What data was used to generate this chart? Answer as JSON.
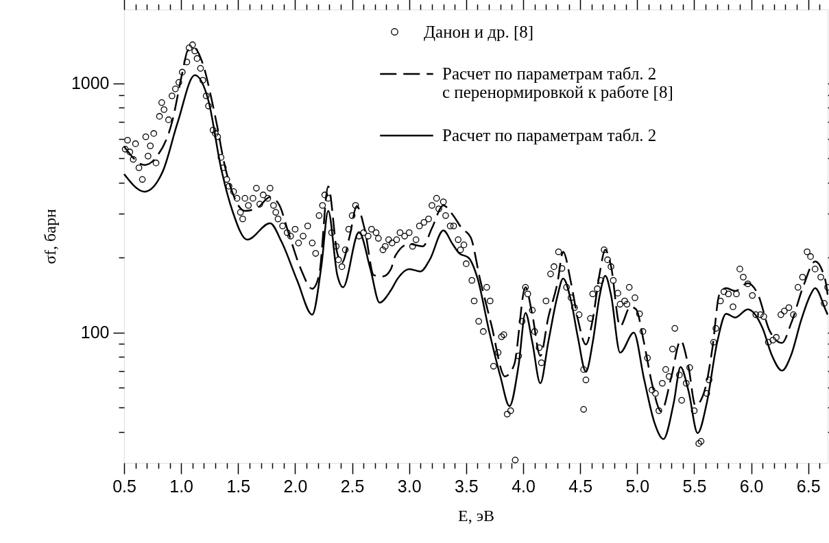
{
  "chart_data": {
    "type": "line",
    "xlabel": "E, эВ",
    "ylabel": "σf, барн",
    "log": "y",
    "grid": false,
    "legend": "top right",
    "xlim": [
      0.5,
      6.67
    ],
    "ylim": [
      30,
      1980
    ],
    "xticks": [
      0.5,
      {
        "value": 0.6,
        "label": null
      },
      {
        "value": 0.7,
        "label": null
      },
      {
        "value": 0.8,
        "label": null
      },
      {
        "value": 0.9,
        "label": null
      },
      {
        "value": 1,
        "label": "1.0"
      },
      {
        "value": 1.1,
        "label": null
      },
      {
        "value": 1.2,
        "label": null
      },
      {
        "value": 1.3,
        "label": null
      },
      {
        "value": 1.4,
        "label": null
      },
      1.5,
      {
        "value": 1.6,
        "label": null
      },
      {
        "value": 1.7,
        "label": null
      },
      {
        "value": 1.8,
        "label": null
      },
      {
        "value": 1.9,
        "label": null
      },
      {
        "value": 2,
        "label": "2.0"
      },
      {
        "value": 2.1,
        "label": null
      },
      {
        "value": 2.2,
        "label": null
      },
      {
        "value": 2.3,
        "label": null
      },
      {
        "value": 2.4,
        "label": null
      },
      2.5,
      {
        "value": 2.6,
        "label": null
      },
      {
        "value": 2.7,
        "label": null
      },
      {
        "value": 2.8,
        "label": null
      },
      {
        "value": 2.9,
        "label": null
      },
      {
        "value": 3,
        "label": "3.0"
      },
      {
        "value": 3.1,
        "label": null
      },
      {
        "value": 3.2,
        "label": null
      },
      {
        "value": 3.3,
        "label": null
      },
      {
        "value": 3.4,
        "label": null
      },
      3.5,
      {
        "value": 3.6,
        "label": null
      },
      {
        "value": 3.7,
        "label": null
      },
      {
        "value": 3.8,
        "label": null
      },
      {
        "value": 3.9,
        "label": null
      },
      {
        "value": 4,
        "label": "4.0"
      },
      {
        "value": 4.1,
        "label": null
      },
      {
        "value": 4.2,
        "label": null
      },
      {
        "value": 4.3,
        "label": null
      },
      {
        "value": 4.4,
        "label": null
      },
      4.5,
      {
        "value": 4.6,
        "label": null
      },
      {
        "value": 4.7,
        "label": null
      },
      {
        "value": 4.8,
        "label": null
      },
      {
        "value": 4.9,
        "label": null
      },
      {
        "value": 5,
        "label": "5.0"
      },
      {
        "value": 5.1,
        "label": null
      },
      {
        "value": 5.2,
        "label": null
      },
      {
        "value": 5.3,
        "label": null
      },
      {
        "value": 5.4,
        "label": null
      },
      5.5,
      {
        "value": 5.6,
        "label": null
      },
      {
        "value": 5.7,
        "label": null
      },
      {
        "value": 5.8,
        "label": null
      },
      {
        "value": 5.9,
        "label": null
      },
      {
        "value": 6,
        "label": "6.0"
      },
      {
        "value": 6.1,
        "label": null
      },
      {
        "value": 6.2,
        "label": null
      },
      {
        "value": 6.3,
        "label": null
      },
      {
        "value": 6.4,
        "label": null
      },
      6.5,
      {
        "value": 6.6,
        "label": null
      }
    ],
    "yticks": [
      {
        "value": 40,
        "label": null
      },
      {
        "value": 50,
        "label": null
      },
      {
        "value": 60,
        "label": null
      },
      {
        "value": 70,
        "label": null
      },
      {
        "value": 80,
        "label": null
      },
      {
        "value": 90,
        "label": null
      },
      100,
      {
        "value": 200,
        "label": null
      },
      {
        "value": 300,
        "label": null
      },
      {
        "value": 400,
        "label": null
      },
      {
        "value": 500,
        "label": null
      },
      {
        "value": 600,
        "label": null
      },
      {
        "value": 700,
        "label": null
      },
      {
        "value": 800,
        "label": null
      },
      {
        "value": 900,
        "label": null
      },
      1000
    ],
    "series": [
      {
        "name": "Данон и др. [8]",
        "type": "scatter",
        "marker": "circle",
        "color": "#000000",
        "x": [
          0.51,
          0.53,
          0.55,
          0.58,
          0.6,
          0.63,
          0.66,
          0.69,
          0.71,
          0.73,
          0.76,
          0.78,
          0.81,
          0.83,
          0.85,
          0.89,
          0.92,
          0.95,
          0.98,
          1.01,
          1.05,
          1.07,
          1.1,
          1.12,
          1.14,
          1.17,
          1.19,
          1.22,
          1.24,
          1.28,
          1.3,
          1.32,
          1.35,
          1.37,
          1.4,
          1.42,
          1.46,
          1.49,
          1.52,
          1.54,
          1.56,
          1.59,
          1.63,
          1.66,
          1.69,
          1.72,
          1.76,
          1.78,
          1.81,
          1.83,
          1.85,
          1.89,
          1.93,
          1.96,
          2.0,
          2.03,
          2.07,
          2.11,
          2.15,
          2.18,
          2.21,
          2.24,
          2.26,
          2.29,
          2.32,
          2.36,
          2.38,
          2.41,
          2.44,
          2.47,
          2.5,
          2.53,
          2.56,
          2.6,
          2.64,
          2.67,
          2.71,
          2.73,
          2.77,
          2.79,
          2.82,
          2.85,
          2.89,
          2.92,
          2.96,
          3.0,
          3.03,
          3.06,
          3.09,
          3.13,
          3.17,
          3.2,
          3.24,
          3.26,
          3.3,
          3.32,
          3.36,
          3.39,
          3.43,
          3.45,
          3.48,
          3.5,
          3.55,
          3.57,
          3.61,
          3.65,
          3.68,
          3.71,
          3.74,
          3.78,
          3.81,
          3.83,
          3.86,
          3.89,
          3.93,
          3.96,
          3.99,
          4.02,
          4.04,
          4.08,
          4.1,
          4.14,
          4.16,
          4.2,
          4.24,
          4.27,
          4.31,
          4.34,
          4.38,
          4.42,
          4.45,
          4.49,
          4.53,
          4.55,
          4.53,
          4.59,
          4.61,
          4.65,
          4.68,
          4.71,
          4.74,
          4.77,
          4.79,
          4.83,
          4.85,
          4.89,
          4.91,
          4.93,
          4.98,
          5.02,
          5.05,
          5.09,
          5.13,
          5.16,
          5.19,
          5.22,
          5.25,
          5.28,
          5.31,
          5.33,
          5.37,
          5.39,
          5.43,
          5.46,
          5.5,
          5.54,
          5.56,
          5.61,
          5.63,
          5.67,
          5.69,
          5.73,
          5.76,
          5.8,
          5.84,
          5.87,
          5.9,
          5.93,
          5.97,
          6.01,
          6.04,
          6.08,
          6.11,
          6.15,
          6.19,
          6.22,
          6.26,
          6.29,
          6.33,
          6.37,
          6.41,
          6.45,
          6.49,
          6.52,
          6.56,
          6.61,
          6.64,
          6.67
        ],
        "values": [
          545,
          592,
          531,
          496,
          573,
          459,
          412,
          611,
          511,
          562,
          630,
          480,
          738,
          838,
          786,
          715,
          892,
          951,
          1010,
          1110,
          1220,
          1390,
          1430,
          1350,
          1260,
          1150,
          1030,
          892,
          812,
          650,
          630,
          611,
          505,
          459,
          412,
          387,
          368,
          346,
          304,
          286,
          346,
          324,
          346,
          380,
          328,
          357,
          346,
          380,
          324,
          304,
          286,
          268,
          252,
          244,
          260,
          229,
          244,
          268,
          229,
          208,
          295,
          324,
          357,
          346,
          252,
          222,
          196,
          184,
          215,
          260,
          295,
          324,
          244,
          252,
          244,
          260,
          252,
          239,
          215,
          222,
          236,
          229,
          236,
          252,
          244,
          252,
          222,
          236,
          268,
          277,
          286,
          324,
          346,
          314,
          335,
          295,
          268,
          268,
          236,
          215,
          225,
          189,
          162,
          134,
          111,
          101,
          152,
          134,
          73.3,
          83.2,
          96.3,
          98.1,
          47.1,
          48.6,
          30.8,
          80.6,
          111,
          152,
          143,
          123,
          101,
          87,
          75.7,
          134,
          172,
          184,
          211,
          181,
          152,
          138,
          126,
          118,
          71.1,
          64.6,
          49.2,
          114,
          143,
          150,
          162,
          215,
          196,
          184,
          162,
          144,
          130,
          134,
          130,
          152,
          138,
          119,
          101,
          79.1,
          58.8,
          57,
          48.6,
          62.6,
          71.1,
          66.7,
          85.9,
          104,
          67.6,
          53.5,
          62.6,
          72.4,
          48.6,
          35.9,
          36.6,
          57,
          64.6,
          91.5,
          104,
          134,
          146,
          143,
          127,
          143,
          180,
          167,
          157,
          141,
          118,
          118,
          116,
          91.5,
          93.3,
          95.7,
          118,
          122,
          126,
          118,
          152,
          167,
          211,
          202,
          180,
          167,
          131,
          152
        ]
      },
      {
        "name": "Расчет по параметрам табл. 2\nс перенормировкой к работе [8]",
        "line_style": "dashed",
        "color": "#000000",
        "x": [
          0.5,
          0.68,
          0.78,
          0.92,
          1.01,
          1.06,
          1.12,
          1.19,
          1.27,
          1.32,
          1.37,
          1.45,
          1.56,
          1.67,
          1.78,
          1.86,
          1.94,
          2.05,
          2.15,
          2.21,
          2.29,
          2.37,
          2.41,
          2.48,
          2.54,
          2.61,
          2.69,
          2.77,
          2.84,
          2.88,
          3.0,
          3.12,
          3.2,
          3.3,
          3.38,
          3.46,
          3.54,
          3.62,
          3.72,
          3.84,
          3.92,
          4.02,
          4.08,
          4.15,
          4.22,
          4.3,
          4.35,
          4.42,
          4.48,
          4.55,
          4.61,
          4.67,
          4.72,
          4.77,
          4.85,
          4.94,
          4.99,
          5.06,
          5.13,
          5.21,
          5.3,
          5.38,
          5.45,
          5.51,
          5.59,
          5.66,
          5.72,
          5.78,
          5.86,
          5.97,
          6.06,
          6.16,
          6.27,
          6.35,
          6.46,
          6.56,
          6.65,
          6.67
        ],
        "values": [
          558,
          471,
          505,
          699,
          1100,
          1360,
          1380,
          1200,
          852,
          661,
          498,
          365,
          308,
          317,
          350,
          326,
          253,
          180,
          150,
          170,
          386,
          208,
          191,
          246,
          322,
          260,
          170,
          168,
          180,
          204,
          227,
          222,
          263,
          324,
          298,
          263,
          241,
          165,
          108,
          66.7,
          74.1,
          152,
          118,
          80.6,
          115,
          158,
          211,
          158,
          113,
          89.6,
          113,
          172,
          215,
          185,
          106,
          127,
          124,
          90.9,
          62.3,
          48.3,
          66.6,
          92.9,
          72.8,
          51,
          58.3,
          87,
          142,
          151,
          147,
          158,
          142,
          102,
          90.9,
          109,
          155,
          193,
          162,
          142
        ]
      },
      {
        "name": "Расчет по параметрам табл. 2",
        "line_style": "solid",
        "color": "#000000",
        "x": [
          0.5,
          0.68,
          0.84,
          0.97,
          1.12,
          1.24,
          1.35,
          1.45,
          1.58,
          1.78,
          1.88,
          2.02,
          2.15,
          2.23,
          2.29,
          2.37,
          2.42,
          2.56,
          2.66,
          2.74,
          2.84,
          2.9,
          3.0,
          3.1,
          3.18,
          3.3,
          3.38,
          3.44,
          3.52,
          3.6,
          3.7,
          3.8,
          3.88,
          3.96,
          4.02,
          4.08,
          4.15,
          4.22,
          4.3,
          4.35,
          4.42,
          4.48,
          4.55,
          4.61,
          4.67,
          4.72,
          4.77,
          4.85,
          4.97,
          5.06,
          5.15,
          5.23,
          5.32,
          5.38,
          5.45,
          5.53,
          5.61,
          5.7,
          5.78,
          5.86,
          5.97,
          6.1,
          6.18,
          6.27,
          6.35,
          6.44,
          6.52,
          6.56,
          6.65,
          6.67
        ],
        "values": [
          433,
          368,
          445,
          699,
          1080,
          852,
          458,
          308,
          236,
          275,
          232,
          161,
          118,
          185,
          308,
          170,
          152,
          253,
          180,
          132,
          148,
          165,
          180,
          176,
          196,
          257,
          227,
          208,
          200,
          165,
          102,
          66.7,
          50.7,
          74.1,
          120,
          91.5,
          62.6,
          91.5,
          140,
          165,
          134,
          95.5,
          69.6,
          91.5,
          140,
          169,
          142,
          83.1,
          100,
          65.1,
          43.7,
          37.4,
          52.2,
          72.8,
          58.3,
          39.5,
          52.2,
          90.9,
          119,
          115,
          124,
          104,
          81.3,
          70.4,
          81.3,
          113,
          142,
          151,
          124,
          118
        ]
      }
    ]
  }
}
